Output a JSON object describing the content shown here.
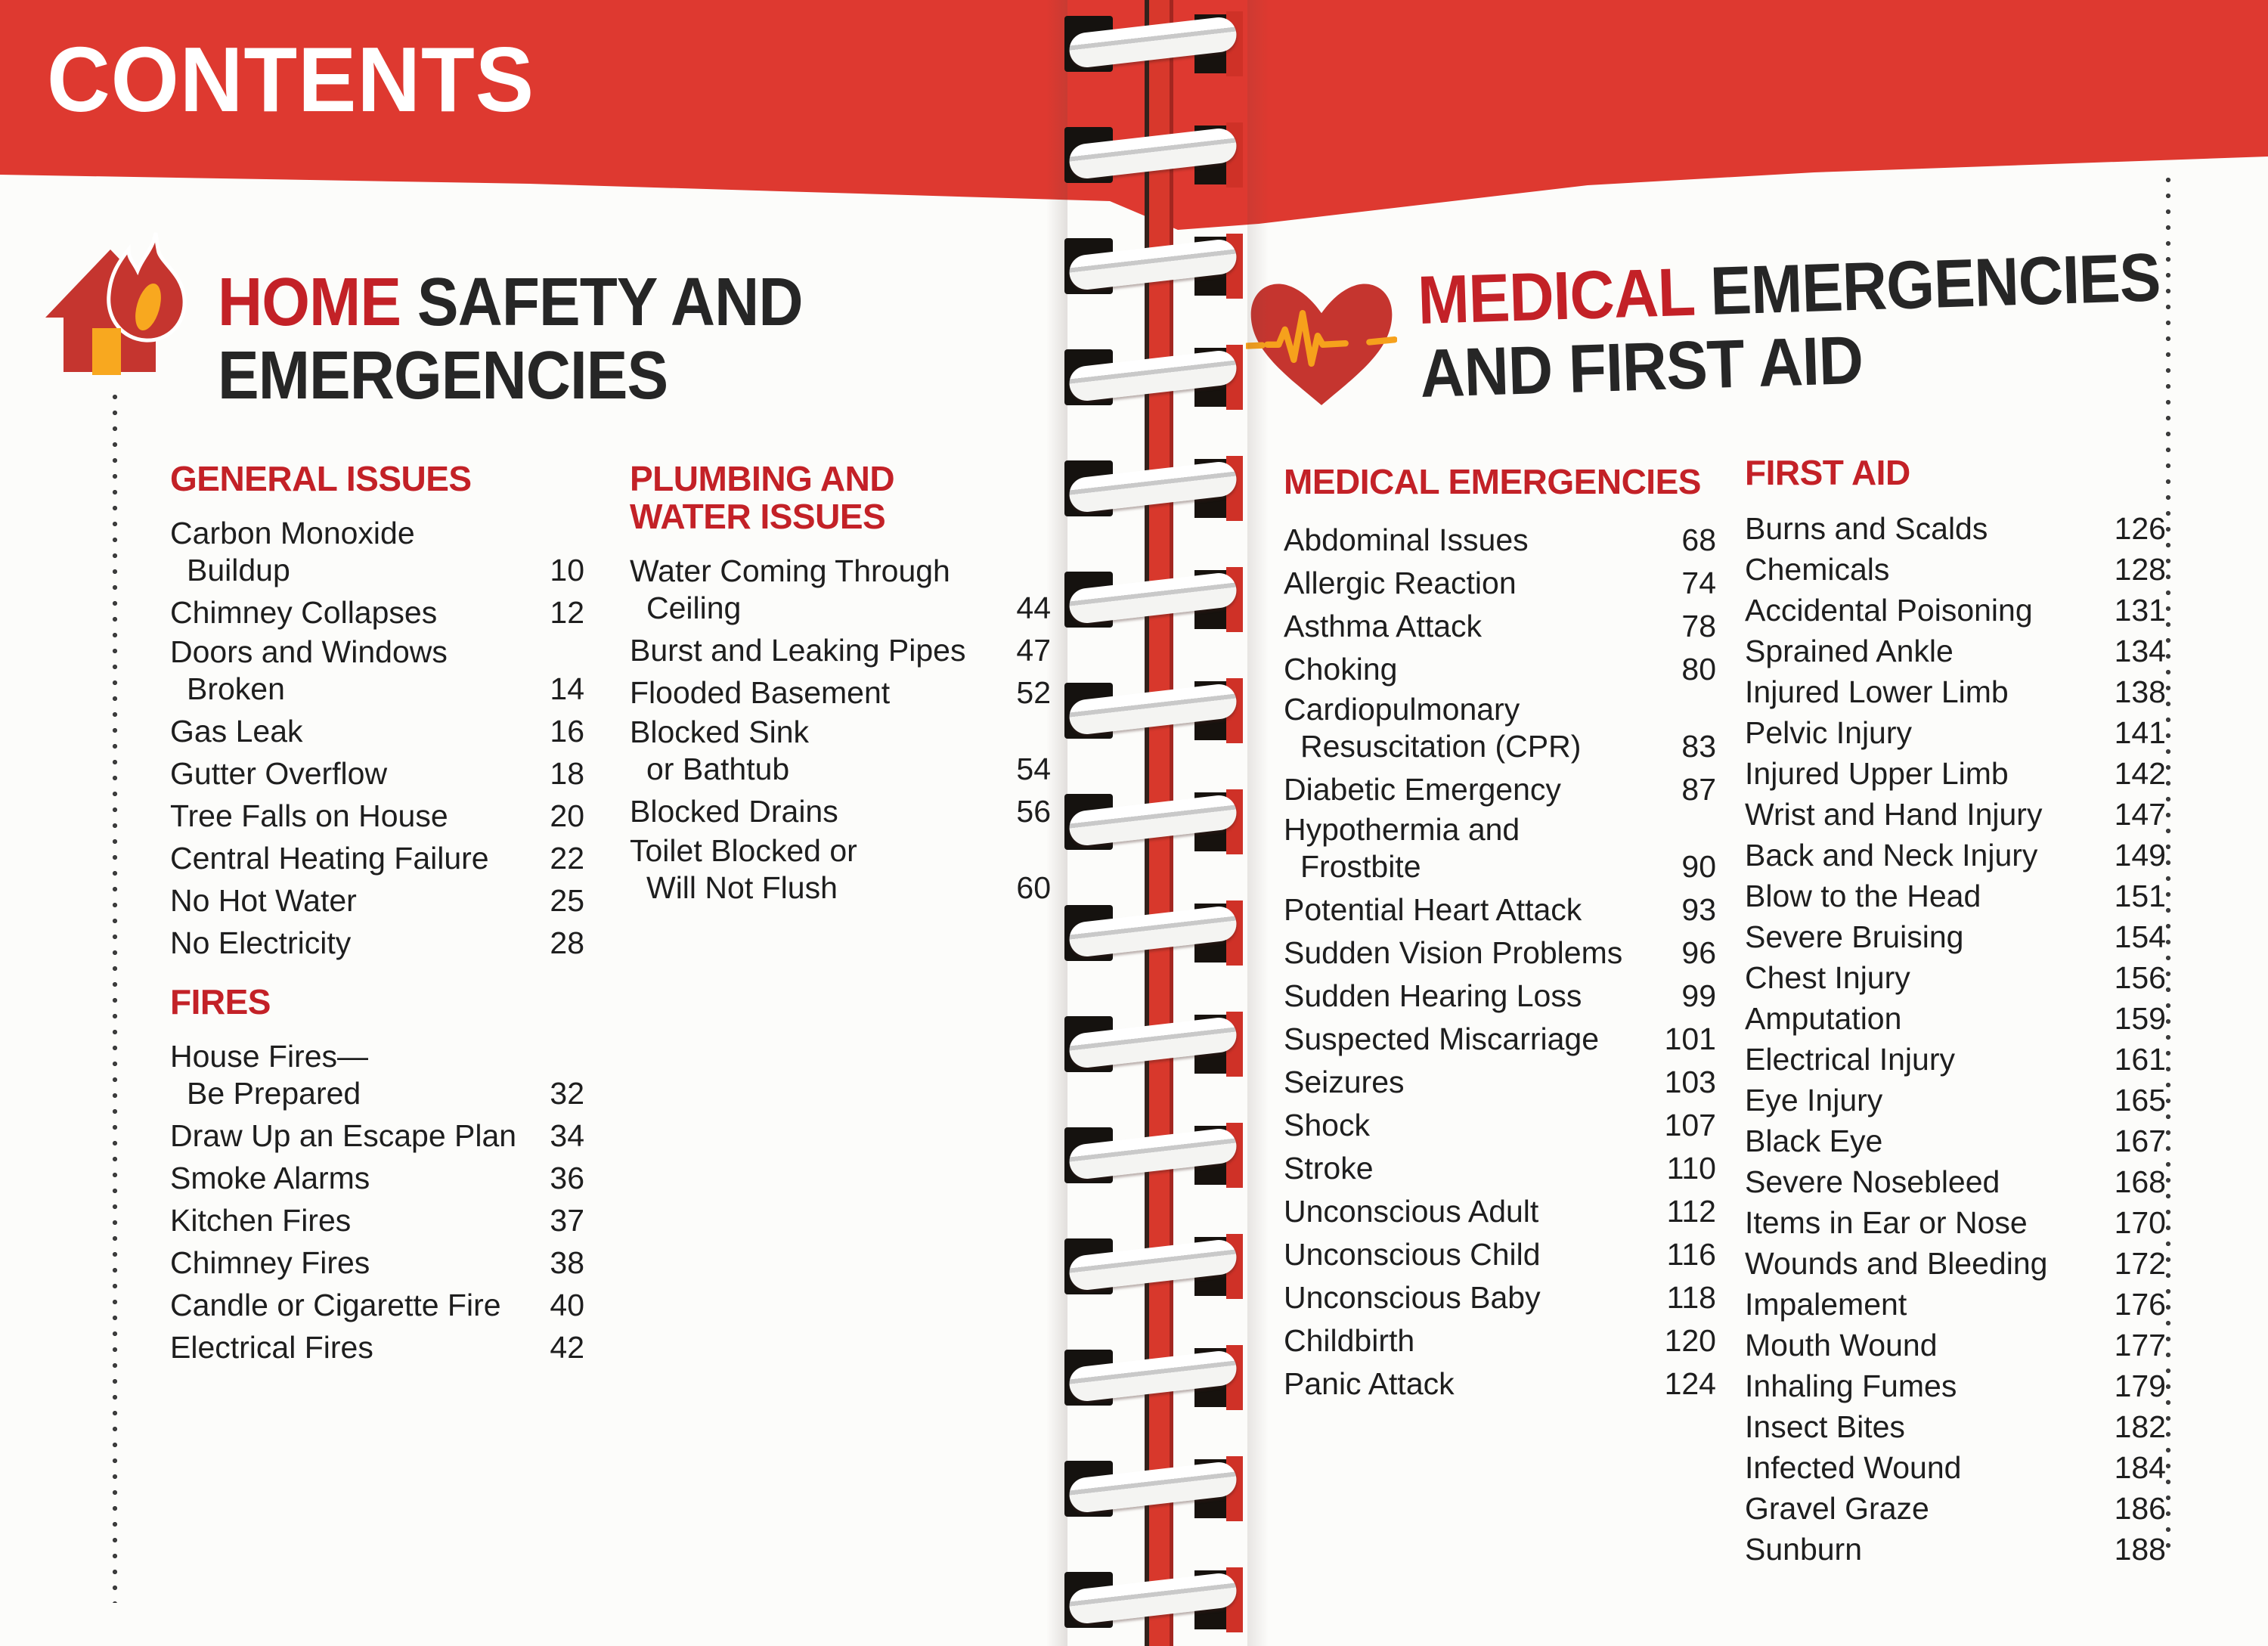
{
  "banner": {
    "title": "CONTENTS"
  },
  "left_page": {
    "icon": "burning-house-icon",
    "title_red": "HOME",
    "title_rest": " SAFETY AND",
    "title_line2": "EMERGENCIES"
  },
  "right_page": {
    "icon": "heart-pulse-icon",
    "title_red": "MEDICAL",
    "title_rest": " EMERGENCIES",
    "title_line2": "AND FIRST AID"
  },
  "colors": {
    "banner_red": "#de3930",
    "heading_red": "#c32127",
    "icon_red": "#c5352f",
    "icon_orange": "#f8a81f",
    "spine_red": "#d8382c",
    "text_black": "#1e1e1e"
  },
  "sections": {
    "general_issues": {
      "title_lines": [
        "GENERAL ISSUES"
      ],
      "items": [
        {
          "lines": [
            "Carbon Monoxide",
            "Buildup"
          ],
          "page": "10"
        },
        {
          "lines": [
            "Chimney Collapses"
          ],
          "page": "12"
        },
        {
          "lines": [
            "Doors and Windows",
            "Broken"
          ],
          "page": "14"
        },
        {
          "lines": [
            "Gas Leak"
          ],
          "page": "16"
        },
        {
          "lines": [
            "Gutter Overflow"
          ],
          "page": "18"
        },
        {
          "lines": [
            "Tree Falls on House"
          ],
          "page": "20"
        },
        {
          "lines": [
            "Central Heating Failure"
          ],
          "page": "22"
        },
        {
          "lines": [
            "No Hot Water"
          ],
          "page": "25"
        },
        {
          "lines": [
            "No Electricity"
          ],
          "page": "28"
        }
      ]
    },
    "fires": {
      "title_lines": [
        "FIRES"
      ],
      "items": [
        {
          "lines": [
            "House Fires—",
            "Be Prepared"
          ],
          "page": "32"
        },
        {
          "lines": [
            "Draw Up an Escape Plan"
          ],
          "page": "34"
        },
        {
          "lines": [
            "Smoke Alarms"
          ],
          "page": "36"
        },
        {
          "lines": [
            "Kitchen Fires"
          ],
          "page": "37"
        },
        {
          "lines": [
            "Chimney Fires"
          ],
          "page": "38"
        },
        {
          "lines": [
            "Candle or Cigarette Fire"
          ],
          "page": "40"
        },
        {
          "lines": [
            "Electrical Fires"
          ],
          "page": "42"
        }
      ]
    },
    "plumbing": {
      "title_lines": [
        "PLUMBING AND",
        "WATER ISSUES"
      ],
      "items": [
        {
          "lines": [
            "Water Coming Through",
            "Ceiling"
          ],
          "page": "44"
        },
        {
          "lines": [
            "Burst and Leaking Pipes"
          ],
          "page": "47"
        },
        {
          "lines": [
            "Flooded Basement"
          ],
          "page": "52"
        },
        {
          "lines": [
            "Blocked Sink",
            "or Bathtub"
          ],
          "page": "54"
        },
        {
          "lines": [
            "Blocked Drains"
          ],
          "page": "56"
        },
        {
          "lines": [
            "Toilet Blocked or",
            "Will Not Flush"
          ],
          "page": "60"
        }
      ]
    },
    "medical_emergencies": {
      "title_lines": [
        "MEDICAL EMERGENCIES"
      ],
      "items": [
        {
          "lines": [
            "Abdominal Issues"
          ],
          "page": "68"
        },
        {
          "lines": [
            "Allergic Reaction"
          ],
          "page": "74"
        },
        {
          "lines": [
            "Asthma Attack"
          ],
          "page": "78"
        },
        {
          "lines": [
            "Choking"
          ],
          "page": "80"
        },
        {
          "lines": [
            "Cardiopulmonary",
            "Resuscitation (CPR)"
          ],
          "page": "83"
        },
        {
          "lines": [
            "Diabetic Emergency"
          ],
          "page": "87"
        },
        {
          "lines": [
            "Hypothermia and",
            "Frostbite"
          ],
          "page": "90"
        },
        {
          "lines": [
            "Potential Heart Attack"
          ],
          "page": "93"
        },
        {
          "lines": [
            "Sudden Vision Problems"
          ],
          "page": "96"
        },
        {
          "lines": [
            "Sudden Hearing Loss"
          ],
          "page": "99"
        },
        {
          "lines": [
            "Suspected Miscarriage"
          ],
          "page": "101"
        },
        {
          "lines": [
            "Seizures"
          ],
          "page": "103"
        },
        {
          "lines": [
            "Shock"
          ],
          "page": "107"
        },
        {
          "lines": [
            "Stroke"
          ],
          "page": "110"
        },
        {
          "lines": [
            "Unconscious Adult"
          ],
          "page": "112"
        },
        {
          "lines": [
            "Unconscious Child"
          ],
          "page": "116"
        },
        {
          "lines": [
            "Unconscious Baby"
          ],
          "page": "118"
        },
        {
          "lines": [
            "Childbirth"
          ],
          "page": "120"
        },
        {
          "lines": [
            "Panic Attack"
          ],
          "page": "124"
        }
      ]
    },
    "first_aid": {
      "title_lines": [
        "FIRST AID"
      ],
      "items": [
        {
          "lines": [
            "Burns and Scalds"
          ],
          "page": "126"
        },
        {
          "lines": [
            "Chemicals"
          ],
          "page": "128"
        },
        {
          "lines": [
            "Accidental Poisoning"
          ],
          "page": "131"
        },
        {
          "lines": [
            "Sprained Ankle"
          ],
          "page": "134"
        },
        {
          "lines": [
            "Injured Lower Limb"
          ],
          "page": "138"
        },
        {
          "lines": [
            "Pelvic Injury"
          ],
          "page": "141"
        },
        {
          "lines": [
            "Injured Upper Limb"
          ],
          "page": "142"
        },
        {
          "lines": [
            "Wrist and Hand Injury"
          ],
          "page": "147"
        },
        {
          "lines": [
            "Back and Neck Injury"
          ],
          "page": "149"
        },
        {
          "lines": [
            "Blow to the Head"
          ],
          "page": "151"
        },
        {
          "lines": [
            "Severe Bruising"
          ],
          "page": "154"
        },
        {
          "lines": [
            "Chest Injury"
          ],
          "page": "156"
        },
        {
          "lines": [
            "Amputation"
          ],
          "page": "159"
        },
        {
          "lines": [
            "Electrical Injury"
          ],
          "page": "161"
        },
        {
          "lines": [
            "Eye Injury"
          ],
          "page": "165"
        },
        {
          "lines": [
            "Black Eye"
          ],
          "page": "167"
        },
        {
          "lines": [
            "Severe Nosebleed"
          ],
          "page": "168"
        },
        {
          "lines": [
            "Items in Ear or Nose"
          ],
          "page": "170"
        },
        {
          "lines": [
            "Wounds and Bleeding"
          ],
          "page": "172"
        },
        {
          "lines": [
            "Impalement"
          ],
          "page": "176"
        },
        {
          "lines": [
            "Mouth Wound"
          ],
          "page": "177"
        },
        {
          "lines": [
            "Inhaling Fumes"
          ],
          "page": "179"
        },
        {
          "lines": [
            "Insect Bites"
          ],
          "page": "182"
        },
        {
          "lines": [
            "Infected Wound"
          ],
          "page": "184"
        },
        {
          "lines": [
            "Gravel Graze"
          ],
          "page": "186"
        },
        {
          "lines": [
            "Sunburn"
          ],
          "page": "188"
        }
      ]
    }
  }
}
